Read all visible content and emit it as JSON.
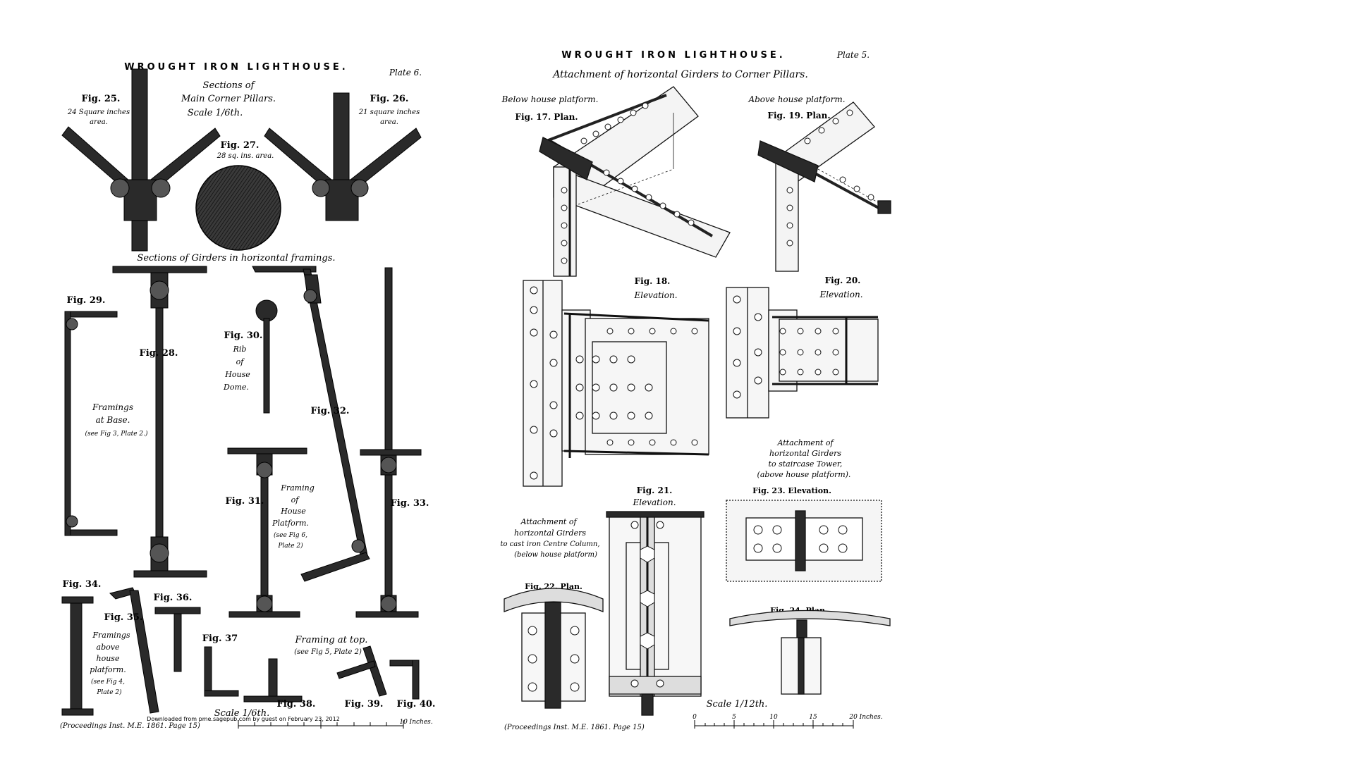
{
  "plate6": {
    "title": "WROUGHT IRON LIGHTHOUSE.",
    "plate_no": "Plate 6.",
    "sections_pillars": [
      "Sections of",
      "Main Corner Pillars.",
      "Scale 1/6th."
    ],
    "fig25": "Fig. 25.",
    "fig25_area": [
      "24 Square inches",
      "area."
    ],
    "fig26": "Fig. 26.",
    "fig26_area": [
      "21 square inches",
      "area."
    ],
    "fig27": "Fig. 27.",
    "fig27_area": "28 sq. ins. area.",
    "sections_girders": "Sections of Girders in horizontal framings.",
    "fig28": "Fig. 28.",
    "fig29": "Fig. 29.",
    "fig30": "Fig. 30.",
    "fig30_desc": [
      "Rib",
      "of",
      "House",
      "Dome."
    ],
    "fig31": "Fig. 31.",
    "fig31_desc": [
      "Framing",
      "of",
      "House",
      "Platform.",
      "(see Fig 6,",
      "Plate 2)"
    ],
    "fig32": "Fig. 32.",
    "fig33": "Fig. 33.",
    "framings_base": [
      "Framings",
      "at Base.",
      "(see Fig 3, Plate 2.)"
    ],
    "fig34": "Fig. 34.",
    "fig35": "Fig. 35.",
    "fig36": "Fig. 36.",
    "fig37": "Fig. 37",
    "fig38": "Fig. 38.",
    "fig39": "Fig. 39.",
    "fig40": "Fig. 40.",
    "framings_above": [
      "Framings",
      "above",
      "house",
      "platform.",
      "(see Fig 4,",
      "Plate 2)"
    ],
    "framing_top": [
      "Framing at top.",
      "(see Fig 5, Plate 2)"
    ],
    "scale": "Scale 1/6th.",
    "scale_end": "10 Inches.",
    "footer": "(Proceedings Inst. M.E. 1861. Page 15)",
    "download": "Downloaded from pme.sagepub.com by guest on February 23, 2012"
  },
  "plate5": {
    "title": "WROUGHT IRON LIGHTHOUSE.",
    "plate_no": "Plate 5.",
    "subtitle": "Attachment of horizontal Girders to Corner Pillars.",
    "below": "Below house platform.",
    "above": "Above house platform.",
    "fig17": "Fig. 17. Plan.",
    "fig19": "Fig. 19. Plan.",
    "fig18": [
      "Fig. 18.",
      "Elevation."
    ],
    "fig20": [
      "Fig. 20.",
      "Elevation."
    ],
    "attach_centre": [
      "Attachment of",
      "horizontal Girders",
      "to cast iron Centre Column,",
      "(below house platform)"
    ],
    "fig21": [
      "Fig. 21.",
      "Elevation."
    ],
    "attach_stair": [
      "Attachment of",
      "horizontal Girders",
      "to staircase Tower,",
      "(above house platform)."
    ],
    "fig23": "Fig. 23. Elevation.",
    "fig22": "Fig. 22. Plan.",
    "fig24": "Fig. 24. Plan.",
    "scale": "Scale 1/12th.",
    "scale_ticks": [
      "0",
      "5",
      "10",
      "15",
      "20 Inches."
    ],
    "footer": "(Proceedings Inst. M.E. 1861. Page 15)"
  }
}
